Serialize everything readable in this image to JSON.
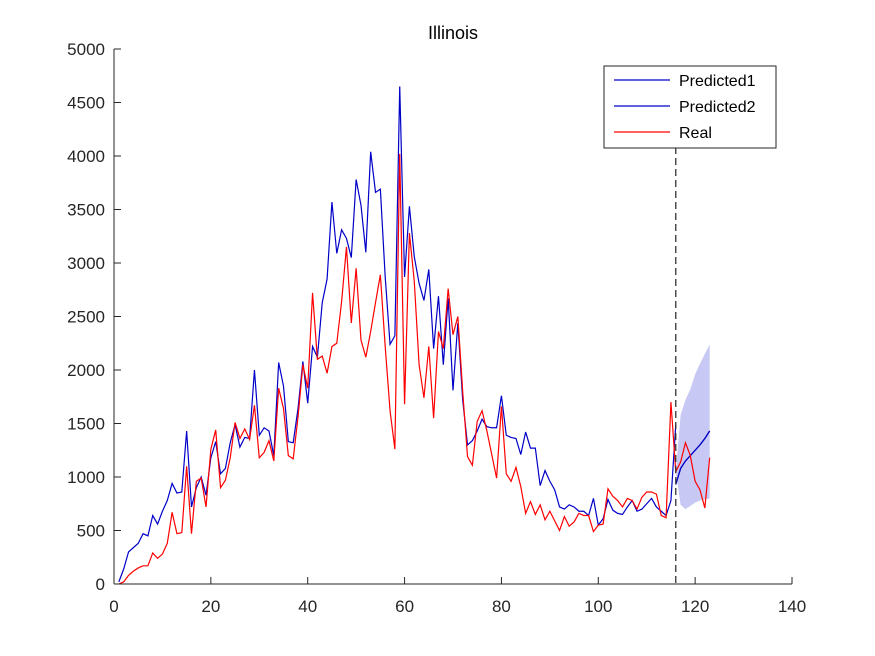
{
  "chart_data": {
    "type": "line",
    "title": "Illinois",
    "xlabel": "",
    "ylabel": "",
    "xlim": [
      0,
      140
    ],
    "ylim": [
      0,
      5000
    ],
    "xticks": [
      0,
      20,
      40,
      60,
      80,
      100,
      120,
      140
    ],
    "yticks": [
      0,
      500,
      1000,
      1500,
      2000,
      2500,
      3000,
      3500,
      4000,
      4500,
      5000
    ],
    "grid": false,
    "legend_position": "top-right",
    "forecast_start_x": 116,
    "series": [
      {
        "name": "Predicted1",
        "color": "#0000c8",
        "x": [
          1,
          2,
          3,
          4,
          5,
          6,
          7,
          8,
          9,
          10,
          11,
          12,
          13,
          14,
          15,
          16,
          17,
          18,
          19,
          20,
          21,
          22,
          23,
          24,
          25,
          26,
          27,
          28,
          29,
          30,
          31,
          32,
          33,
          34,
          35,
          36,
          37,
          38,
          39,
          40,
          41,
          42,
          43,
          44,
          45,
          46,
          47,
          48,
          49,
          50,
          51,
          52,
          53,
          54,
          55,
          56,
          57,
          58,
          59,
          60,
          61,
          62,
          63,
          64,
          65,
          66,
          67,
          68,
          69,
          70,
          71,
          72,
          73,
          74,
          75,
          76,
          77,
          78,
          79,
          80,
          81,
          82,
          83,
          84,
          85,
          86,
          87,
          88,
          89,
          90,
          91,
          92,
          93,
          94,
          95,
          96,
          97,
          98,
          99,
          100,
          101,
          102,
          103,
          104,
          105,
          106,
          107,
          108,
          109,
          110,
          111,
          112,
          113,
          114,
          115,
          116
        ],
        "y": [
          20,
          140,
          300,
          340,
          380,
          470,
          450,
          640,
          560,
          680,
          780,
          940,
          850,
          860,
          1430,
          720,
          900,
          1000,
          830,
          1180,
          1330,
          1030,
          1080,
          1320,
          1490,
          1280,
          1370,
          1360,
          2000,
          1390,
          1460,
          1430,
          1200,
          2070,
          1850,
          1330,
          1320,
          1640,
          2080,
          1690,
          2220,
          2120,
          2630,
          2850,
          3570,
          3090,
          3310,
          3230,
          3050,
          3780,
          3540,
          3100,
          4040,
          3660,
          3690,
          2870,
          2240,
          2320,
          4650,
          2870,
          3530,
          3060,
          2810,
          2650,
          2940,
          2200,
          2690,
          2050,
          2670,
          1810,
          2440,
          1720,
          1300,
          1340,
          1430,
          1540,
          1470,
          1460,
          1460,
          1760,
          1390,
          1370,
          1360,
          1210,
          1420,
          1270,
          1270,
          920,
          1060,
          960,
          880,
          720,
          700,
          740,
          720,
          680,
          680,
          640,
          800,
          550,
          610,
          790,
          690,
          660,
          650,
          720,
          780,
          680,
          700,
          750,
          800,
          720,
          680,
          640,
          780,
          1490
        ],
        "x2": [
          116,
          117,
          118,
          119,
          120,
          121,
          122,
          123
        ],
        "y2": [
          930,
          1080,
          1150,
          1200,
          1250,
          1300,
          1360,
          1430
        ]
      },
      {
        "name": "Predicted2",
        "color": "#0000c8",
        "x": [
          116,
          117,
          118,
          119,
          120,
          121,
          122,
          123
        ],
        "y": [
          930,
          1080,
          1150,
          1200,
          1250,
          1300,
          1360,
          1430
        ]
      },
      {
        "name": "Real",
        "color": "#ff0000",
        "x": [
          1,
          2,
          3,
          4,
          5,
          6,
          7,
          8,
          9,
          10,
          11,
          12,
          13,
          14,
          15,
          16,
          17,
          18,
          19,
          20,
          21,
          22,
          23,
          24,
          25,
          26,
          27,
          28,
          29,
          30,
          31,
          32,
          33,
          34,
          35,
          36,
          37,
          38,
          39,
          40,
          41,
          42,
          43,
          44,
          45,
          46,
          47,
          48,
          49,
          50,
          51,
          52,
          53,
          54,
          55,
          56,
          57,
          58,
          59,
          60,
          61,
          62,
          63,
          64,
          65,
          66,
          67,
          68,
          69,
          70,
          71,
          72,
          73,
          74,
          75,
          76,
          77,
          78,
          79,
          80,
          81,
          82,
          83,
          84,
          85,
          86,
          87,
          88,
          89,
          90,
          91,
          92,
          93,
          94,
          95,
          96,
          97,
          98,
          99,
          100,
          101,
          102,
          103,
          104,
          105,
          106,
          107,
          108,
          109,
          110,
          111,
          112,
          113,
          114,
          115,
          116,
          117,
          118,
          119,
          120,
          121,
          122,
          123
        ],
        "y": [
          0,
          20,
          80,
          120,
          150,
          170,
          170,
          290,
          240,
          280,
          380,
          670,
          470,
          480,
          1100,
          470,
          960,
          990,
          720,
          1260,
          1440,
          900,
          970,
          1180,
          1510,
          1360,
          1450,
          1350,
          1670,
          1180,
          1230,
          1340,
          1150,
          1830,
          1640,
          1200,
          1170,
          1560,
          2050,
          1830,
          2720,
          2100,
          2130,
          1970,
          2220,
          2250,
          2640,
          3150,
          2440,
          2950,
          2280,
          2120,
          2360,
          2630,
          2890,
          2220,
          1620,
          1260,
          4020,
          1680,
          3280,
          2830,
          2050,
          1740,
          2220,
          1550,
          2360,
          2200,
          2760,
          2330,
          2500,
          1800,
          1190,
          1110,
          1520,
          1620,
          1430,
          1210,
          990,
          1660,
          1030,
          960,
          1090,
          910,
          660,
          770,
          650,
          740,
          600,
          680,
          590,
          500,
          630,
          540,
          580,
          660,
          640,
          640,
          490,
          550,
          560,
          890,
          820,
          780,
          720,
          800,
          780,
          700,
          810,
          860,
          860,
          840,
          640,
          620,
          1700,
          1050,
          1140,
          1320,
          1200,
          960,
          880,
          710,
          1180
        ]
      }
    ],
    "confidence_band": {
      "color": "#c8c8f5",
      "x": [
        116,
        117,
        118,
        119,
        120,
        121,
        122,
        123
      ],
      "upper": [
        1050,
        1580,
        1720,
        1820,
        1960,
        2060,
        2150,
        2240
      ],
      "lower": [
        1050,
        740,
        700,
        730,
        760,
        780,
        790,
        800
      ]
    }
  }
}
